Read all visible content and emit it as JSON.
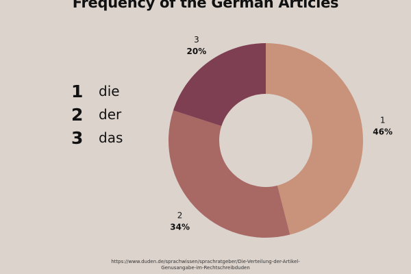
{
  "chart_data": {
    "type": "pie",
    "style": "donut",
    "title": "Frequency of the German Articles",
    "categories": [
      "1",
      "2",
      "3"
    ],
    "values": [
      46,
      34,
      20
    ],
    "value_labels": [
      "46%",
      "34%",
      "20%"
    ],
    "colors": [
      "#c9927a",
      "#a86864",
      "#7f3f52"
    ],
    "legend": [
      {
        "number": "1",
        "word": "die"
      },
      {
        "number": "2",
        "word": "der"
      },
      {
        "number": "3",
        "word": "das"
      }
    ],
    "legend_placement": "left",
    "source": [
      "https://www.duden.de/sprachwissen/sprachratgeber/Die-Verteilung-der-Artikel-",
      "Genusangabe-im-Rechtschreibduden"
    ]
  }
}
